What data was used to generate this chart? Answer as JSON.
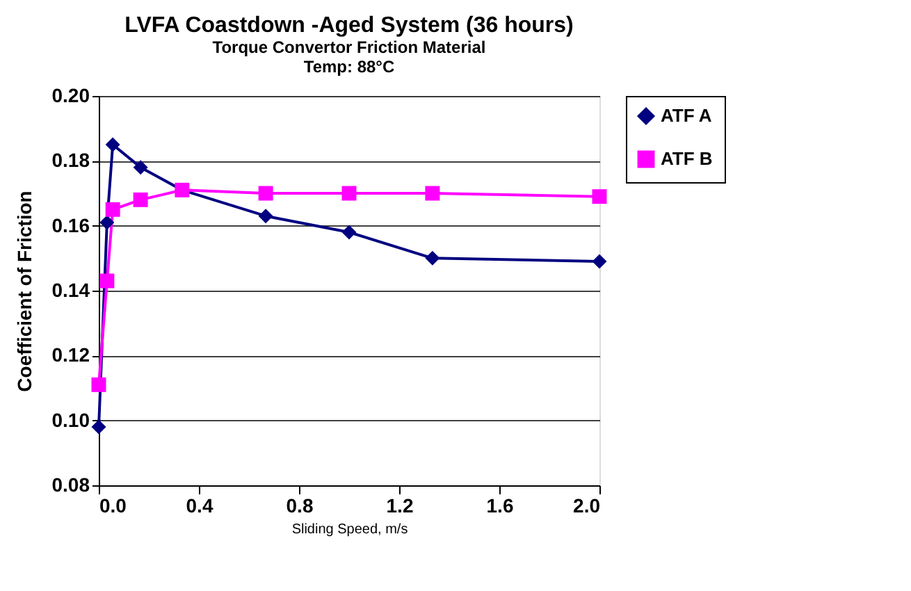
{
  "chart_data": {
    "type": "line",
    "title": "LVFA Coastdown -Aged System (36 hours)",
    "subtitle": "Torque Convertor Friction Material\nTemp:  88°C",
    "xlabel": "Sliding Speed,  m/s",
    "ylabel": "Coefficient of Friction",
    "x": [
      0,
      0.033,
      0.056,
      0.167,
      0.333,
      0.667,
      1.0,
      1.333,
      2.0
    ],
    "series": [
      {
        "name": "ATF A",
        "color": "#000080",
        "marker": "diamond",
        "values": [
          0.098,
          0.161,
          0.185,
          0.178,
          0.171,
          0.163,
          0.158,
          0.15,
          0.149
        ]
      },
      {
        "name": "ATF B",
        "color": "#ff00ff",
        "marker": "square",
        "values": [
          0.111,
          0.143,
          0.165,
          0.168,
          0.171,
          0.17,
          0.17,
          0.17,
          0.169
        ]
      }
    ],
    "xlim": [
      0,
      2.0
    ],
    "ylim": [
      0.08,
      0.2
    ],
    "xticks": [
      {
        "value": 0,
        "label": "0.0"
      },
      0.4,
      0.8,
      1.2,
      1.6,
      {
        "value": 2.0,
        "label": "2.0"
      }
    ],
    "yticks": [
      0.08,
      {
        "value": 0.1,
        "label": "0.10"
      },
      0.12,
      0.14,
      0.16,
      0.18,
      {
        "value": 0.2,
        "label": "0.20"
      }
    ],
    "grid": "y",
    "legend": "top right",
    "line_style": "solid"
  }
}
